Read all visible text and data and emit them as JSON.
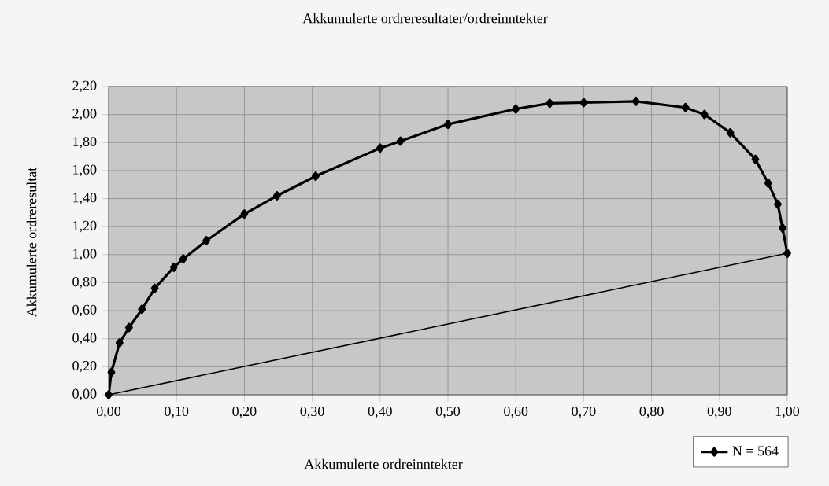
{
  "chart_data": {
    "type": "line",
    "title": "Akkumulerte ordreresultater/ordreinntekter",
    "xlabel": "Akkumulerte ordreinntekter",
    "ylabel": "Akkumulerte ordreresultat",
    "xlim": [
      0,
      1
    ],
    "ylim": [
      0,
      2.2
    ],
    "xticks": [
      {
        "value": 0,
        "label": "0,00"
      },
      {
        "value": 0.1,
        "label": "0,10"
      },
      {
        "value": 0.2,
        "label": "0,20"
      },
      {
        "value": 0.3,
        "label": "0,30"
      },
      {
        "value": 0.4,
        "label": "0,40"
      },
      {
        "value": 0.5,
        "label": "0,50"
      },
      {
        "value": 0.6,
        "label": "0,60"
      },
      {
        "value": 0.7,
        "label": "0,70"
      },
      {
        "value": 0.8,
        "label": "0,80"
      },
      {
        "value": 0.9,
        "label": "0,90"
      },
      {
        "value": 1,
        "label": "1,00"
      }
    ],
    "yticks": [
      {
        "value": 0,
        "label": "0,00"
      },
      {
        "value": 0.2,
        "label": "0,20"
      },
      {
        "value": 0.4,
        "label": "0,40"
      },
      {
        "value": 0.6,
        "label": "0,60"
      },
      {
        "value": 0.8,
        "label": "0,80"
      },
      {
        "value": 1,
        "label": "1,00"
      },
      {
        "value": 1.2,
        "label": "1,20"
      },
      {
        "value": 1.4,
        "label": "1,40"
      },
      {
        "value": 1.6,
        "label": "1,60"
      },
      {
        "value": 1.8,
        "label": "1,80"
      },
      {
        "value": 2,
        "label": "2,00"
      },
      {
        "value": 2.2,
        "label": "2,20"
      }
    ],
    "grid": true,
    "legend": "bottom right",
    "series": [
      {
        "name": "N = 564",
        "color": "#000000",
        "marker": "diamond",
        "x": [
          0,
          0.004,
          0.016,
          0.03,
          0.049,
          0.068,
          0.096,
          0.11,
          0.144,
          0.2,
          0.248,
          0.305,
          0.4,
          0.43,
          0.5,
          0.6,
          0.65,
          0.7,
          0.777,
          0.85,
          0.878,
          0.916,
          0.953,
          0.972,
          0.986,
          0.993,
          1.0
        ],
        "values": [
          0,
          0.16,
          0.37,
          0.48,
          0.61,
          0.76,
          0.91,
          0.97,
          1.1,
          1.29,
          1.42,
          1.56,
          1.76,
          1.81,
          1.93,
          2.04,
          2.08,
          2.085,
          2.094,
          2.05,
          2.0,
          1.87,
          1.68,
          1.51,
          1.36,
          1.19,
          1.01
        ]
      },
      {
        "color": "#000000",
        "marker": "none",
        "x": [
          0,
          1
        ],
        "values": [
          0,
          1.01
        ]
      }
    ]
  }
}
